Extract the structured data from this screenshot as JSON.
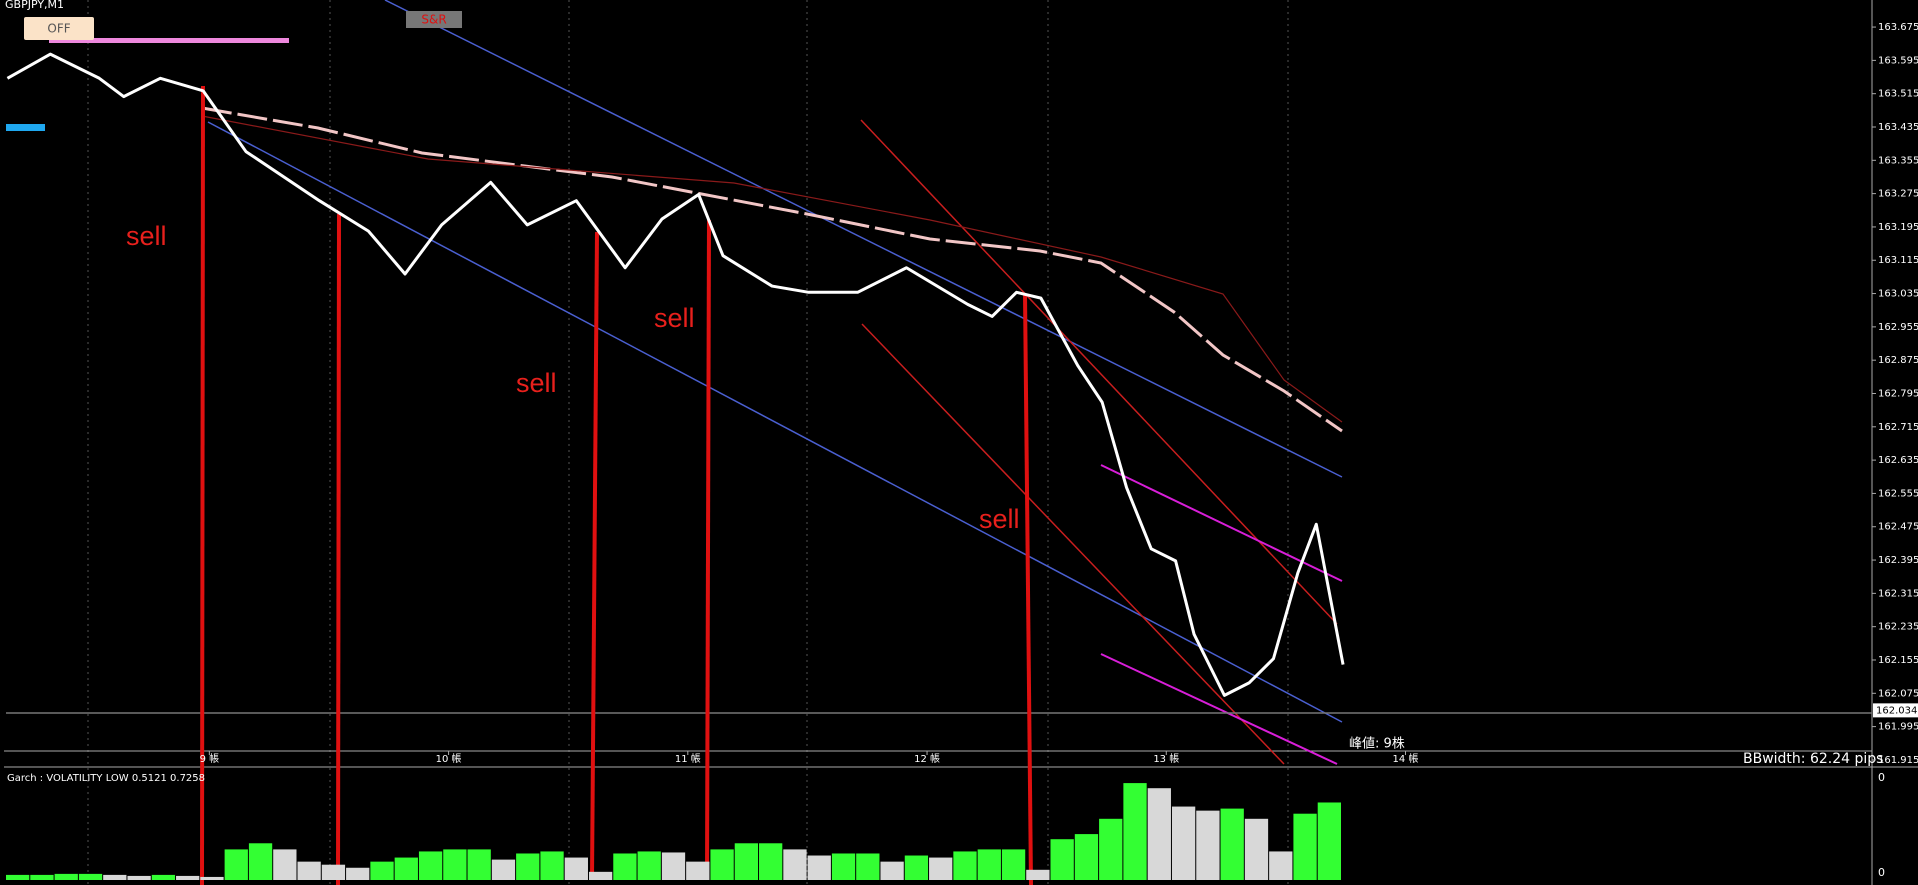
{
  "header": {
    "symbol": "GBPJPY,M1",
    "off_button": "OFF",
    "sr_button": "S&R"
  },
  "annotations": {
    "sell": [
      "sell",
      "sell",
      "sell",
      "sell"
    ],
    "width_note": "峰値: 9株",
    "bbwidth": "BBwidth: 62.24 pips"
  },
  "chart_data": {
    "type": "line",
    "ylim": [
      161.91,
      163.74
    ],
    "yticks": [
      163.675,
      163.595,
      163.515,
      163.435,
      163.355,
      163.275,
      163.195,
      163.115,
      163.035,
      162.955,
      162.875,
      162.795,
      162.715,
      162.635,
      162.555,
      162.475,
      162.395,
      162.315,
      162.235,
      162.155,
      162.075,
      161.995,
      161.915
    ],
    "xlim": [
      8.15,
      15.95
    ],
    "xticks": [
      {
        "value": 9,
        "label": "9 帳"
      },
      {
        "value": 10,
        "label": "10 帳"
      },
      {
        "value": 11,
        "label": "11 帳"
      },
      {
        "value": 12,
        "label": "12 帳"
      },
      {
        "value": 13,
        "label": "13 帳"
      },
      {
        "value": 14,
        "label": "14 帳"
      }
    ],
    "current_price": 162.034,
    "series": [
      {
        "name": "GBPJPY",
        "color": "#ffffff",
        "x": [
          8.156,
          8.335,
          8.54,
          8.642,
          8.795,
          8.974,
          9.153,
          9.46,
          9.665,
          9.818,
          9.971,
          10.176,
          10.329,
          10.534,
          10.738,
          10.892,
          11.045,
          11.147,
          11.352,
          11.505,
          11.71,
          11.914,
          12.17,
          12.272,
          12.374,
          12.476,
          12.63,
          12.732,
          12.834,
          12.937,
          13.039,
          13.116,
          13.243,
          13.346,
          13.448,
          13.55,
          13.627,
          13.739
        ],
        "values": [
          163.552,
          163.61,
          163.552,
          163.508,
          163.552,
          163.522,
          163.376,
          163.258,
          163.185,
          163.082,
          163.2,
          163.302,
          163.2,
          163.258,
          163.097,
          163.214,
          163.273,
          163.126,
          163.053,
          163.038,
          163.038,
          163.097,
          163.009,
          162.98,
          163.038,
          163.024,
          162.862,
          162.774,
          162.569,
          162.422,
          162.393,
          162.217,
          162.07,
          162.1,
          162.158,
          162.364,
          162.481,
          162.144
        ]
      }
    ]
  },
  "indicator": {
    "type": "histogram",
    "label": "Garch : VOLATILITY LOW 0.5121 0.7258",
    "axis_labels": [
      "0",
      "0"
    ],
    "ylim": [
      0,
      1
    ],
    "color": "#33ff33",
    "falling_color": "#d8d8d8",
    "values": [
      0.05,
      0.05,
      0.06,
      0.06,
      0.05,
      0.04,
      0.05,
      0.04,
      0.03,
      0.3,
      0.36,
      0.3,
      0.18,
      0.15,
      0.12,
      0.18,
      0.22,
      0.28,
      0.3,
      0.3,
      0.2,
      0.26,
      0.28,
      0.22,
      0.08,
      0.26,
      0.28,
      0.27,
      0.18,
      0.3,
      0.36,
      0.36,
      0.3,
      0.24,
      0.26,
      0.26,
      0.18,
      0.24,
      0.22,
      0.28,
      0.3,
      0.3,
      0.1,
      0.4,
      0.45,
      0.6,
      0.95,
      0.9,
      0.72,
      0.68,
      0.7,
      0.6,
      0.28,
      0.65,
      0.76
    ]
  }
}
